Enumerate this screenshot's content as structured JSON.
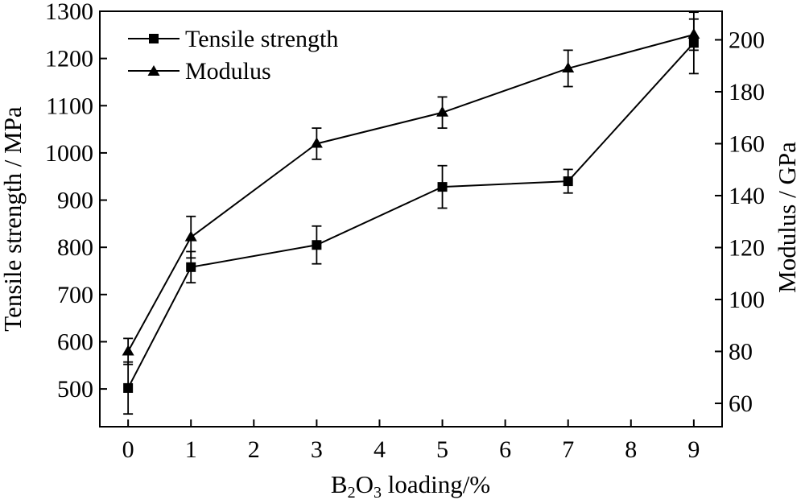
{
  "chart_data": {
    "type": "line",
    "x": [
      0,
      1,
      3,
      5,
      7,
      9
    ],
    "xlabel": {
      "main": "B",
      "sub1": "2",
      "mid": "O",
      "sub2": "3",
      "tail": " loading/%"
    },
    "x_ticks": [
      0,
      1,
      2,
      3,
      4,
      5,
      6,
      7,
      8,
      9
    ],
    "xlim": [
      -0.45,
      9.45
    ],
    "y_left": {
      "label": "Tensile strength / MPa",
      "lim": [
        420,
        1300
      ],
      "ticks": [
        500,
        600,
        700,
        800,
        900,
        1000,
        1100,
        1200,
        1300
      ]
    },
    "y_right": {
      "label": "Modulus / GPa",
      "lim": [
        51,
        211
      ],
      "ticks": [
        60,
        80,
        100,
        120,
        140,
        160,
        180,
        200
      ]
    },
    "series": [
      {
        "name": "Tensile strength",
        "axis": "left",
        "marker": "square",
        "values": [
          502,
          758,
          805,
          928,
          940,
          1233
        ],
        "errors": [
          55,
          33,
          40,
          45,
          25,
          65
        ]
      },
      {
        "name": "Modulus",
        "axis": "right",
        "marker": "triangle",
        "values": [
          80,
          124,
          160,
          172,
          189,
          202
        ],
        "errors": [
          5,
          8,
          6,
          6,
          7,
          6
        ]
      }
    ],
    "legend": "top-left",
    "grid": false
  }
}
